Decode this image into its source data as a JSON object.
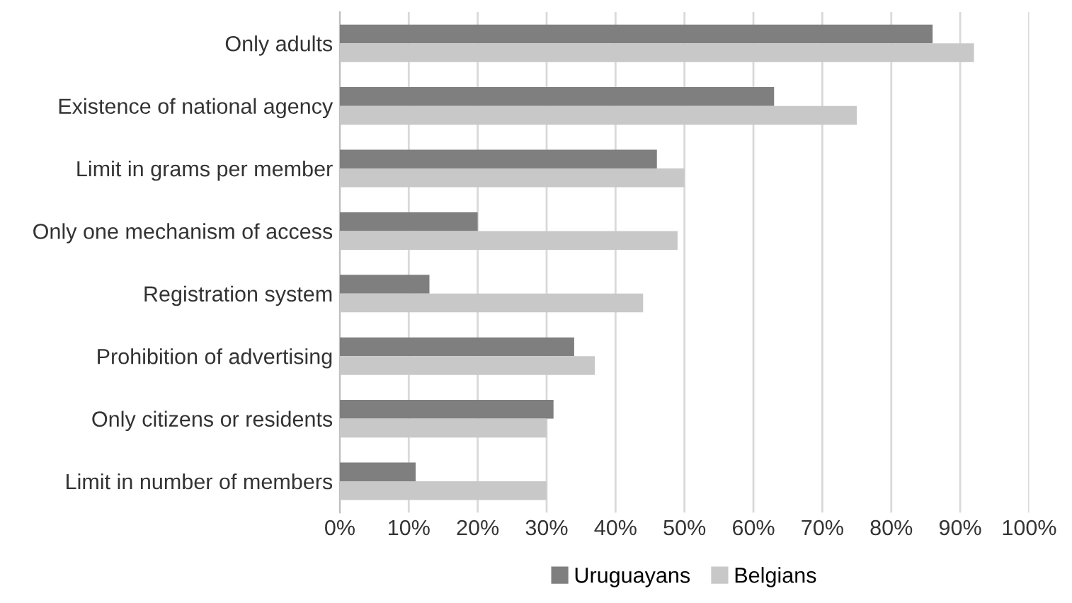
{
  "chart_data": {
    "type": "bar",
    "orientation": "horizontal",
    "categories": [
      "Only adults",
      "Existence of national agency",
      "Limit in grams per member",
      "Only one mechanism of access",
      "Registration system",
      "Prohibition of advertising",
      "Only citizens or residents",
      "Limit in number of members"
    ],
    "series": [
      {
        "name": "Uruguayans",
        "color": "#7f7f7f",
        "values": [
          86,
          63,
          46,
          20,
          13,
          34,
          31,
          11
        ]
      },
      {
        "name": "Belgians",
        "color": "#c8c8c8",
        "values": [
          92,
          75,
          50,
          49,
          44,
          37,
          30,
          30
        ]
      }
    ],
    "xlim": [
      0,
      100
    ],
    "xticks": [
      {
        "value": 0,
        "label": "0%"
      },
      {
        "value": 10,
        "label": "10%"
      },
      {
        "value": 20,
        "label": "20%"
      },
      {
        "value": 30,
        "label": "30%"
      },
      {
        "value": 40,
        "label": "40%"
      },
      {
        "value": 50,
        "label": "50%"
      },
      {
        "value": 60,
        "label": "60%"
      },
      {
        "value": 70,
        "label": "70%"
      },
      {
        "value": 80,
        "label": "80%"
      },
      {
        "value": 90,
        "label": "90%"
      },
      {
        "value": 100,
        "label": "100%"
      }
    ],
    "grid": "x",
    "legend": "bottom"
  }
}
